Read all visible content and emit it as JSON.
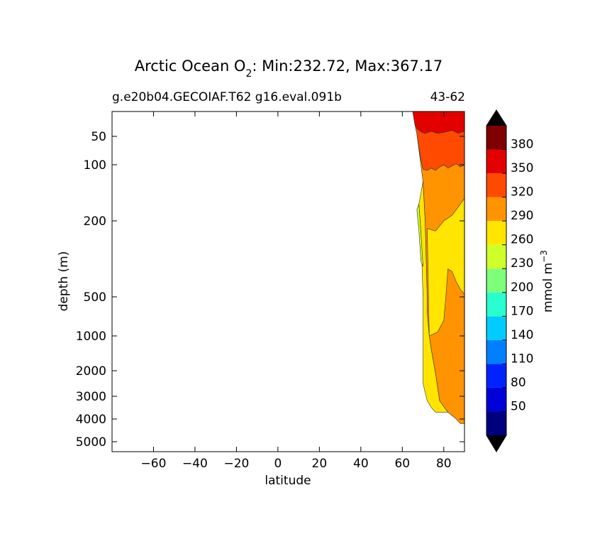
{
  "chart_data": {
    "type": "contourf",
    "title": {
      "prefix": "Arctic Ocean O",
      "subscript": "2",
      "suffix": ": Min:232.72, Max:367.17"
    },
    "subtitle_left": "g.e20b04.GECOIAF.T62 g16.eval.091b",
    "subtitle_right": "43-62",
    "xlabel": "latitude",
    "ylabel": "depth (m)",
    "x_ticks": [
      "−60",
      "−40",
      "−20",
      "0",
      "20",
      "40",
      "60",
      "80"
    ],
    "x_tick_values": [
      -60,
      -40,
      -20,
      0,
      20,
      40,
      60,
      80
    ],
    "xlim": [
      -80,
      90
    ],
    "y_ticks": [
      "50",
      "100",
      "200",
      "500",
      "1000",
      "2000",
      "3000",
      "4000",
      "5000"
    ],
    "y_tick_values": [
      50,
      100,
      200,
      500,
      1000,
      2000,
      3000,
      4000,
      5000
    ],
    "colorbar": {
      "label": "mmol m",
      "label_superscript": "−3",
      "levels": [
        20,
        50,
        80,
        110,
        140,
        170,
        200,
        230,
        260,
        290,
        320,
        350,
        380,
        410
      ],
      "tick_labels": [
        "50",
        "80",
        "110",
        "140",
        "170",
        "200",
        "230",
        "260",
        "290",
        "320",
        "350",
        "380"
      ],
      "colors": [
        "#00007f",
        "#0000d9",
        "#0022ff",
        "#0080ff",
        "#00ccff",
        "#29ffce",
        "#7dff7a",
        "#ceff29",
        "#ffe500",
        "#ff9400",
        "#ff4a00",
        "#e30000",
        "#7f0000"
      ],
      "extend_low_color": "#000000",
      "extend_high_color": "#000000"
    },
    "regions": [
      {
        "band": "350-380",
        "color": "#e30000",
        "boundary": [
          [
            65,
            0
          ],
          [
            90,
            0
          ],
          [
            90,
            40
          ],
          [
            87,
            44
          ],
          [
            84,
            38
          ],
          [
            80,
            42
          ],
          [
            77,
            44
          ],
          [
            74,
            40
          ],
          [
            71,
            44
          ],
          [
            69,
            41
          ],
          [
            67,
            34
          ],
          [
            66,
            25
          ]
        ]
      },
      {
        "band": "320-350",
        "color": "#ff4a00",
        "boundary": [
          [
            66,
            25
          ],
          [
            67,
            34
          ],
          [
            69,
            41
          ],
          [
            71,
            44
          ],
          [
            74,
            40
          ],
          [
            77,
            44
          ],
          [
            80,
            42
          ],
          [
            84,
            38
          ],
          [
            87,
            44
          ],
          [
            90,
            40
          ],
          [
            90,
            100
          ],
          [
            88,
            104
          ],
          [
            86,
            98
          ],
          [
            84,
            102
          ],
          [
            82,
            106
          ],
          [
            80,
            100
          ],
          [
            78,
            104
          ],
          [
            76,
            110
          ],
          [
            74,
            106
          ],
          [
            72,
            110
          ],
          [
            70,
            108
          ],
          [
            69,
            92
          ],
          [
            68,
            70
          ],
          [
            67,
            45
          ]
        ]
      },
      {
        "band": "290-320",
        "color": "#ff9400",
        "boundary": [
          [
            67,
            45
          ],
          [
            68,
            70
          ],
          [
            69,
            92
          ],
          [
            70,
            108
          ],
          [
            72,
            110
          ],
          [
            74,
            106
          ],
          [
            76,
            110
          ],
          [
            78,
            104
          ],
          [
            80,
            100
          ],
          [
            82,
            106
          ],
          [
            84,
            102
          ],
          [
            86,
            98
          ],
          [
            88,
            104
          ],
          [
            90,
            100
          ],
          [
            90,
            4200
          ],
          [
            88,
            4200
          ],
          [
            86,
            4000
          ],
          [
            82,
            3700
          ],
          [
            78,
            3200
          ],
          [
            76,
            2100
          ],
          [
            74,
            1400
          ],
          [
            73,
            1000
          ],
          [
            72,
            700
          ],
          [
            72,
            500
          ],
          [
            71,
            200
          ],
          [
            70,
            130
          ]
        ]
      },
      {
        "band": "260-290",
        "color": "#ffe500",
        "boundary": [
          [
            70,
            130
          ],
          [
            71,
            200
          ],
          [
            72,
            500
          ],
          [
            72,
            700
          ],
          [
            73,
            1000
          ],
          [
            74,
            1400
          ],
          [
            76,
            2100
          ],
          [
            78,
            3200
          ],
          [
            82,
            3700
          ],
          [
            76,
            3700
          ],
          [
            74,
            3500
          ],
          [
            72,
            3200
          ],
          [
            70,
            2500
          ],
          [
            70,
            1100
          ],
          [
            70,
            500
          ],
          [
            69,
            250
          ],
          [
            68,
            170
          ]
        ]
      },
      {
        "band": "230-260",
        "color": "#ceff29",
        "boundary": [
          [
            68,
            170
          ],
          [
            69,
            250
          ],
          [
            70,
            380
          ],
          [
            69,
            360
          ],
          [
            68,
            240
          ],
          [
            67,
            180
          ]
        ]
      }
    ],
    "orange_region_interior_boundary_note": "",
    "inner_yellow": [
      [
        72,
        230
      ],
      [
        76,
        240
      ],
      [
        80,
        200
      ],
      [
        84,
        190
      ],
      [
        88,
        170
      ],
      [
        90,
        160
      ],
      [
        90,
        490
      ],
      [
        88,
        470
      ],
      [
        86,
        440
      ],
      [
        84,
        400
      ],
      [
        82,
        390
      ],
      [
        81,
        500
      ],
      [
        80,
        800
      ],
      [
        77,
        950
      ],
      [
        73,
        1000
      ]
    ]
  }
}
